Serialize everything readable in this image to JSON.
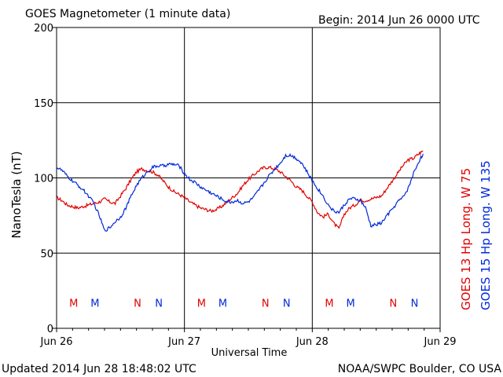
{
  "header": {
    "title": "GOES Magnetometer (1 minute data)",
    "begin": "Begin:  2014 Jun 26 0000 UTC"
  },
  "footer": {
    "updated": "Updated 2014 Jun 28 18:48:02 UTC",
    "credit": "NOAA/SWPC Boulder, CO USA"
  },
  "colors": {
    "goes13": "#e00000",
    "goes15": "#0028d8",
    "grid": "#000000"
  },
  "chart_data": {
    "type": "line",
    "title": "GOES Magnetometer (1 minute data)",
    "xlabel": "Universal Time",
    "ylabel": "NanoTesla (nT)",
    "xlim": [
      0,
      72
    ],
    "ylim": [
      0,
      200
    ],
    "x_ticks": [
      {
        "value": 0,
        "label": "Jun 26"
      },
      {
        "value": 24,
        "label": "Jun 27"
      },
      {
        "value": 48,
        "label": "Jun 28"
      },
      {
        "value": 72,
        "label": "Jun 29"
      }
    ],
    "y_ticks": [
      0,
      50,
      100,
      150,
      200
    ],
    "grid": true,
    "x_unit": "hours since 2014 Jun 26 0000 UTC",
    "series": [
      {
        "name": "GOES 13 Hp  Long. W 75",
        "color": "#e00000",
        "x": [
          0,
          1,
          2,
          3,
          4,
          5,
          6,
          7,
          8,
          9,
          10,
          11,
          12,
          13,
          14,
          15,
          16,
          17,
          18,
          19,
          20,
          21,
          22,
          23,
          24,
          25,
          26,
          27,
          28,
          29,
          30,
          31,
          32,
          33,
          34,
          35,
          36,
          37,
          38,
          39,
          40,
          41,
          42,
          43,
          44,
          45,
          46,
          47,
          48,
          49,
          50,
          51,
          52,
          53,
          54,
          55,
          56,
          57,
          58,
          59,
          60,
          61,
          62,
          63,
          64,
          65,
          66,
          67,
          68,
          68.8
        ],
        "values": [
          87,
          85,
          82,
          81,
          80,
          81,
          82,
          83,
          84,
          86,
          84,
          83,
          88,
          93,
          99,
          104,
          106,
          105,
          104,
          102,
          98,
          94,
          91,
          89,
          87,
          84,
          82,
          80,
          79,
          78,
          79,
          81,
          84,
          87,
          90,
          95,
          99,
          102,
          105,
          107,
          107,
          106,
          104,
          101,
          98,
          94,
          92,
          88,
          84,
          77,
          74,
          76,
          70,
          66,
          76,
          80,
          82,
          85,
          85,
          86,
          87,
          88,
          93,
          98,
          103,
          108,
          112,
          113,
          116,
          118
        ]
      },
      {
        "name": "GOES 15 Hp  Long. W 135",
        "color": "#0028d8",
        "x": [
          0,
          1,
          2,
          3,
          4,
          5,
          6,
          7,
          8,
          9,
          10,
          11,
          12,
          13,
          14,
          15,
          16,
          17,
          18,
          19,
          20,
          21,
          22,
          23,
          24,
          25,
          26,
          27,
          28,
          29,
          30,
          31,
          32,
          33,
          34,
          35,
          36,
          37,
          38,
          39,
          40,
          41,
          42,
          43,
          44,
          45,
          46,
          47,
          48,
          49,
          50,
          51,
          52,
          53,
          54,
          55,
          56,
          57,
          58,
          59,
          60,
          61,
          62,
          63,
          64,
          65,
          66,
          67,
          68,
          68.8
        ],
        "values": [
          107,
          105,
          101,
          98,
          95,
          92,
          88,
          83,
          75,
          65,
          67,
          71,
          74,
          80,
          88,
          95,
          100,
          104,
          107,
          108,
          108,
          109,
          109,
          108,
          103,
          99,
          97,
          94,
          92,
          90,
          88,
          86,
          84,
          84,
          85,
          83,
          84,
          87,
          92,
          97,
          102,
          106,
          110,
          115,
          115,
          113,
          110,
          104,
          98,
          93,
          88,
          82,
          78,
          77,
          82,
          86,
          86,
          85,
          80,
          68,
          69,
          70,
          75,
          79,
          84,
          87,
          93,
          103,
          111,
          116
        ]
      }
    ],
    "markers": [
      {
        "x": 3.2,
        "letter": "M",
        "series": "GOES 13 Hp  Long. W 75"
      },
      {
        "x": 7.2,
        "letter": "M",
        "series": "GOES 15 Hp  Long. W 135"
      },
      {
        "x": 15.2,
        "letter": "N",
        "series": "GOES 13 Hp  Long. W 75"
      },
      {
        "x": 19.2,
        "letter": "N",
        "series": "GOES 15 Hp  Long. W 135"
      },
      {
        "x": 27.2,
        "letter": "M",
        "series": "GOES 13 Hp  Long. W 75"
      },
      {
        "x": 31.2,
        "letter": "M",
        "series": "GOES 15 Hp  Long. W 135"
      },
      {
        "x": 39.2,
        "letter": "N",
        "series": "GOES 13 Hp  Long. W 75"
      },
      {
        "x": 43.2,
        "letter": "N",
        "series": "GOES 15 Hp  Long. W 135"
      },
      {
        "x": 51.2,
        "letter": "M",
        "series": "GOES 13 Hp  Long. W 75"
      },
      {
        "x": 55.2,
        "letter": "M",
        "series": "GOES 15 Hp  Long. W 135"
      },
      {
        "x": 63.2,
        "letter": "N",
        "series": "GOES 13 Hp  Long. W 75"
      },
      {
        "x": 67.2,
        "letter": "N",
        "series": "GOES 15 Hp  Long. W 135"
      }
    ],
    "marker_level": 17
  }
}
